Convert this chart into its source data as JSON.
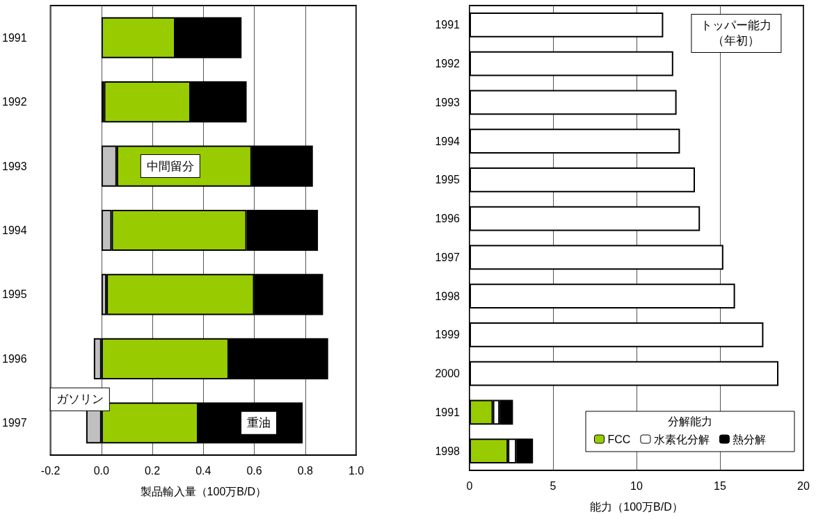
{
  "chart_data": [
    {
      "type": "bar",
      "orientation": "horizontal",
      "stacked": true,
      "xlabel": "製品輸入量（100万B/D）",
      "categories": [
        "1991",
        "1992",
        "1993",
        "1994",
        "1995",
        "1996",
        "1997"
      ],
      "series": [
        {
          "name": "ガソリン",
          "color": "#c0c0c0",
          "values": [
            0,
            0.01,
            0.06,
            0.04,
            0.02,
            -0.03,
            -0.06
          ]
        },
        {
          "name": "中間留分",
          "color": "#99cc00",
          "values": [
            0.29,
            0.34,
            0.53,
            0.53,
            0.58,
            0.5,
            0.38
          ]
        },
        {
          "name": "重油",
          "color": "#000000",
          "values": [
            0.26,
            0.22,
            0.24,
            0.28,
            0.27,
            0.39,
            0.41
          ]
        }
      ],
      "xlim": [
        -0.2,
        1.0
      ],
      "xticks": [
        -0.2,
        {
          "value": 0,
          "label": "0.0"
        },
        0.2,
        0.4,
        0.6,
        0.8,
        {
          "value": 1,
          "label": "1.0"
        }
      ],
      "grid": "x"
    },
    {
      "type": "bar",
      "orientation": "horizontal",
      "stacked": true,
      "xlabel": "能力（100万B/D）",
      "legend_title": "分解能力",
      "legend": "bottom right",
      "categories": [
        "1991",
        "1992",
        "1993",
        "1994",
        "1995",
        "1996",
        "1997",
        "1998",
        "1999",
        "2000",
        "1991",
        "1998"
      ],
      "series": [
        {
          "name": "トッパー能力（年初）",
          "color": "#ffffff",
          "values": [
            11.6,
            12.2,
            12.4,
            12.6,
            13.5,
            13.8,
            15.2,
            15.9,
            17.6,
            18.5,
            null,
            null
          ]
        },
        {
          "name": "FCC",
          "color": "#99cc00",
          "values": [
            null,
            null,
            null,
            null,
            null,
            null,
            null,
            null,
            null,
            null,
            1.4,
            2.3
          ]
        },
        {
          "name": "水素化分解",
          "color": "#ffffff",
          "values": [
            null,
            null,
            null,
            null,
            null,
            null,
            null,
            null,
            null,
            null,
            0.4,
            0.5
          ]
        },
        {
          "name": "熱分解",
          "color": "#000000",
          "values": [
            null,
            null,
            null,
            null,
            null,
            null,
            null,
            null,
            null,
            null,
            0.8,
            1.0
          ]
        }
      ],
      "xlim": [
        0,
        20
      ],
      "xticks": [
        0,
        5,
        10,
        15,
        20
      ],
      "grid": "x"
    }
  ]
}
